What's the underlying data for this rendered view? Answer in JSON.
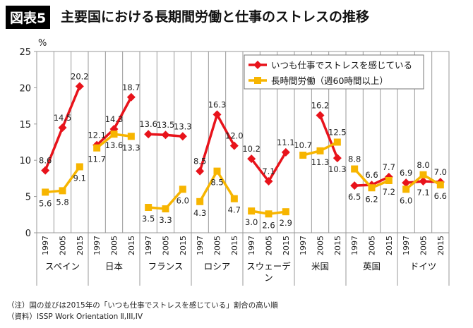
{
  "header": {
    "badge": "図表5",
    "title": "主要国における長期間労働と仕事のストレスの推移"
  },
  "chart_data": {
    "type": "line",
    "ylabel": "%",
    "ylim": [
      0,
      25
    ],
    "yticks": [
      "0",
      "5",
      "10",
      "15",
      "20",
      "25"
    ],
    "years": [
      "1997",
      "2005",
      "2015"
    ],
    "countries": [
      "スペイン",
      "日本",
      "フランス",
      "ロシア",
      "スウェーデン",
      "米国",
      "英国",
      "ドイツ"
    ],
    "series": [
      {
        "name": "いつも仕事でストレスを感じている",
        "color": "#e8131b",
        "values": [
          [
            8.6,
            14.5,
            20.2
          ],
          [
            12.1,
            14.3,
            18.7
          ],
          [
            13.6,
            13.5,
            13.3
          ],
          [
            8.5,
            16.3,
            12.0
          ],
          [
            10.2,
            7.1,
            11.1
          ],
          [
            null,
            16.2,
            10.3
          ],
          [
            6.5,
            6.6,
            7.7
          ],
          [
            6.9,
            7.1,
            7.0
          ]
        ]
      },
      {
        "name": "長時間労働（週60時間以上）",
        "color": "#f7b500",
        "values": [
          [
            5.6,
            5.8,
            9.1
          ],
          [
            11.7,
            13.6,
            13.3
          ],
          [
            3.5,
            3.3,
            6.0
          ],
          [
            4.3,
            8.5,
            4.7
          ],
          [
            3.0,
            2.6,
            2.9
          ],
          [
            10.7,
            11.3,
            12.5
          ],
          [
            8.8,
            6.2,
            7.2
          ],
          [
            6.0,
            8.0,
            6.6
          ]
        ]
      }
    ],
    "legend": "top-right",
    "grid": "vertical"
  },
  "notes": [
    "（注）国の並びは2015年の「いつも仕事でストレスを感じている」割合の高い順",
    "（資料）ISSP Work Orientation Ⅱ,III,IV"
  ]
}
